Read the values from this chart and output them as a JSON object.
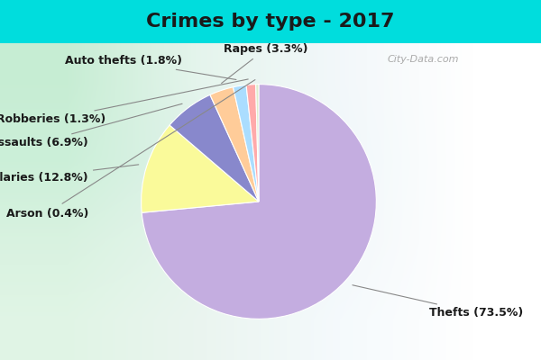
{
  "title": "Crimes by type - 2017",
  "labels": [
    "Thefts",
    "Burglaries",
    "Assaults",
    "Rapes",
    "Auto thefts",
    "Robberies",
    "Arson"
  ],
  "values": [
    73.5,
    12.8,
    6.9,
    3.3,
    1.8,
    1.3,
    0.4
  ],
  "colors": [
    "#C4ADE0",
    "#FAFA9A",
    "#8888CC",
    "#FFCC99",
    "#AADDFF",
    "#FFAAAA",
    "#DDEECC"
  ],
  "bg_top": "#00DDDD",
  "title_fontsize": 16,
  "label_fontsize": 9,
  "startangle": 90,
  "watermark": "City-Data.com"
}
